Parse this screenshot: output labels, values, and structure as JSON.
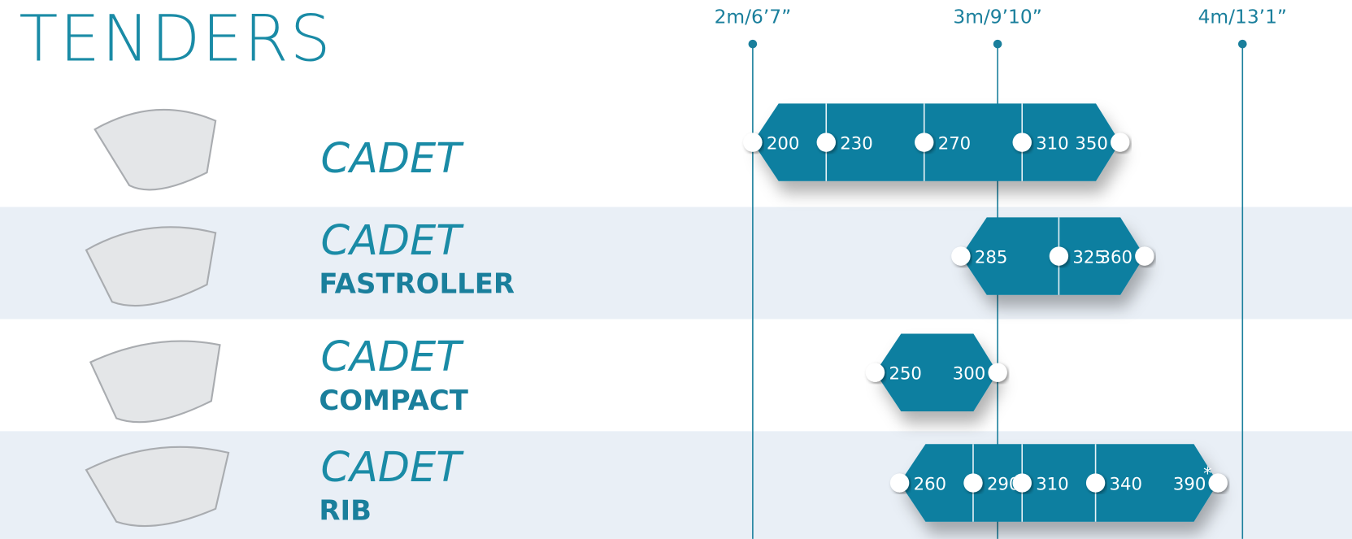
{
  "title": "TENDERS",
  "axis": {
    "ticks": [
      {
        "value": 200,
        "label": "2m/6’7”"
      },
      {
        "value": 300,
        "label": "3m/9’10”"
      },
      {
        "value": 400,
        "label": "4m/13’1”"
      }
    ]
  },
  "rows": [
    {
      "name": "CADET",
      "sizes": [
        200,
        230,
        270,
        310,
        350
      ]
    },
    {
      "name": "CADET",
      "variant": "FASTROLLER",
      "sizes": [
        285,
        325,
        360
      ]
    },
    {
      "name": "CADET",
      "variant": "COMPACT",
      "sizes": [
        250,
        300
      ]
    },
    {
      "name": "CADET",
      "variant": "RIB",
      "sizes": [
        260,
        290,
        310,
        340,
        390
      ],
      "note": "*"
    }
  ]
}
